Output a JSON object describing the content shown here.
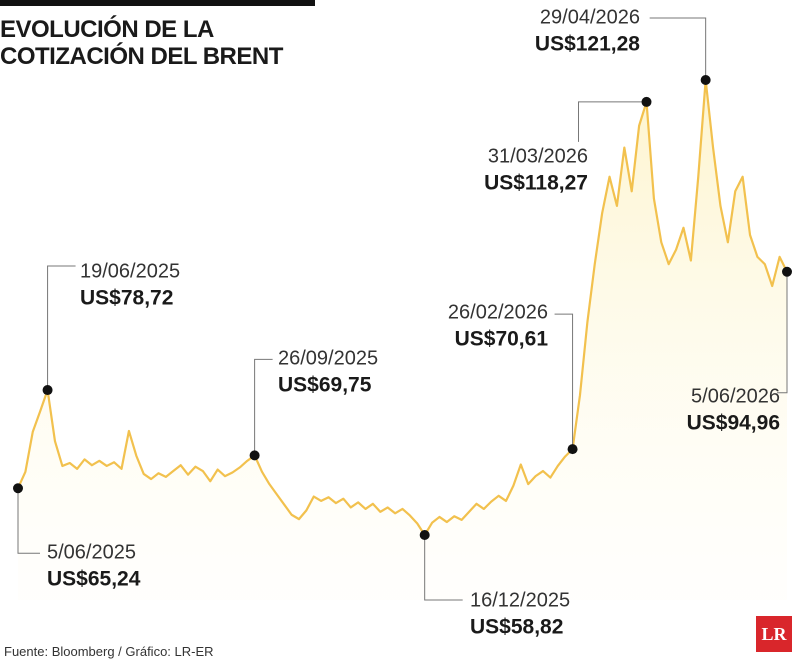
{
  "chart_data": {
    "type": "line",
    "title": "EVOLUCIÓN DE LA COTIZACIÓN DEL BRENT",
    "source": "Fuente: Bloomberg / Gráfico: LR-ER",
    "logo": "LR",
    "color": "#f2c14e",
    "categories": [
      "5/06/2025",
      null,
      null,
      null,
      "19/06/2025",
      null,
      null,
      null,
      null,
      null,
      null,
      null,
      null,
      null,
      null,
      null,
      null,
      null,
      null,
      null,
      null,
      null,
      null,
      null,
      null,
      null,
      null,
      null,
      null,
      null,
      null,
      null,
      "26/09/2025",
      null,
      null,
      null,
      null,
      null,
      null,
      null,
      null,
      null,
      null,
      null,
      null,
      null,
      null,
      null,
      null,
      null,
      null,
      null,
      null,
      null,
      null,
      "16/12/2025",
      null,
      null,
      null,
      null,
      null,
      null,
      null,
      null,
      null,
      null,
      null,
      null,
      null,
      null,
      null,
      null,
      null,
      null,
      null,
      "26/02/2026",
      null,
      null,
      null,
      null,
      null,
      null,
      null,
      null,
      null,
      "31/03/2026",
      null,
      null,
      null,
      null,
      null,
      null,
      null,
      "29/04/2026",
      null,
      null,
      null,
      null,
      null,
      null,
      null,
      null,
      null,
      null,
      "5/06/2026"
    ],
    "values": [
      65.24,
      67.5,
      73,
      75.8,
      78.72,
      71.7,
      68.3,
      68.7,
      67.9,
      69.2,
      68.4,
      69.0,
      68.3,
      68.8,
      67.9,
      73.1,
      69.7,
      67.2,
      66.5,
      67.3,
      66.8,
      67.6,
      68.4,
      67.1,
      68.2,
      67.6,
      66.2,
      67.8,
      66.9,
      67.4,
      68.1,
      69.0,
      69.75,
      67.5,
      65.8,
      64.4,
      63.0,
      61.6,
      61.0,
      62.2,
      64.1,
      63.5,
      64.0,
      63.2,
      63.8,
      62.6,
      63.3,
      62.4,
      63.1,
      62.0,
      62.6,
      61.8,
      62.4,
      61.5,
      60.4,
      58.82,
      60.5,
      61.3,
      60.6,
      61.4,
      60.9,
      62.0,
      63.1,
      62.4,
      63.4,
      64.2,
      63.5,
      65.6,
      68.5,
      65.8,
      66.9,
      67.6,
      66.7,
      68.3,
      69.6,
      70.61,
      78,
      88,
      96,
      103,
      108,
      104,
      112,
      106,
      115,
      118.27,
      105,
      99,
      96,
      98,
      101,
      96.5,
      108,
      121.28,
      112,
      104,
      99,
      106,
      108,
      100,
      97,
      96,
      93,
      97,
      94.96
    ],
    "value_labels": [
      "US$65,24",
      null,
      null,
      null,
      "US$78,72",
      null,
      null,
      null,
      null,
      null,
      null,
      null,
      null,
      null,
      null,
      null,
      null,
      null,
      null,
      null,
      null,
      null,
      null,
      null,
      null,
      null,
      null,
      null,
      null,
      null,
      null,
      null,
      "US$69,75",
      null,
      null,
      null,
      null,
      null,
      null,
      null,
      null,
      null,
      null,
      null,
      null,
      null,
      null,
      null,
      null,
      null,
      null,
      null,
      null,
      null,
      null,
      "US$58,82",
      null,
      null,
      null,
      null,
      null,
      null,
      null,
      null,
      null,
      null,
      null,
      null,
      null,
      null,
      null,
      null,
      null,
      null,
      null,
      "US$70,61",
      null,
      null,
      null,
      null,
      null,
      null,
      null,
      null,
      null,
      "US$118,27",
      null,
      null,
      null,
      null,
      null,
      null,
      null,
      "US$121,28",
      null,
      null,
      null,
      null,
      null,
      null,
      null,
      null,
      null,
      null,
      "US$94,96"
    ]
  }
}
